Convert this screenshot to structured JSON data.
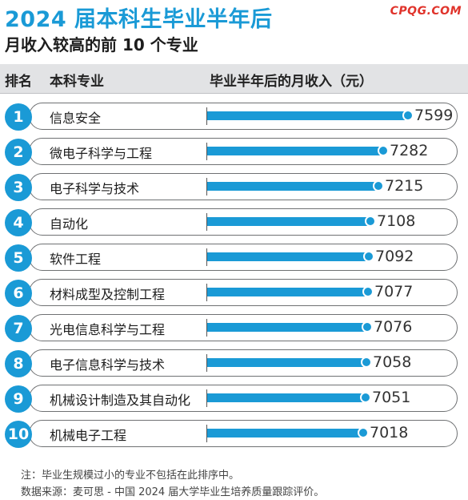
{
  "header": {
    "title": "2024 届本科生毕业半年后",
    "subtitle": "月收入较高的前 10 个专业",
    "logo": "CPQG.COM"
  },
  "table_header": {
    "rank": "排名",
    "major": "本科专业",
    "income": "毕业半年后的月收入（元）"
  },
  "chart_data": {
    "type": "bar",
    "orientation": "horizontal",
    "title": "2024 届本科生毕业半年后 月收入较高的前 10 个专业",
    "ylabel": "毕业半年后的月收入（元）",
    "ranks": [
      "1",
      "2",
      "3",
      "4",
      "5",
      "6",
      "7",
      "8",
      "9",
      "10"
    ],
    "categories": [
      "信息安全",
      "微电子科学与工程",
      "电子科学与技术",
      "自动化",
      "软件工程",
      "材料成型及控制工程",
      "光电信息科学与工程",
      "电子信息科学与技术",
      "机械设计制造及其自动化",
      "机械电子工程"
    ],
    "values": [
      7599,
      7282,
      7215,
      7108,
      7092,
      7077,
      7076,
      7058,
      7051,
      7018
    ],
    "bar_color": "#1a9ad6"
  },
  "notes": {
    "note1": "注：毕业生规模过小的专业不包括在此排序中。",
    "note2": "数据来源：麦可思 - 中国 2024 届大学毕业生培养质量跟踪评价。"
  }
}
